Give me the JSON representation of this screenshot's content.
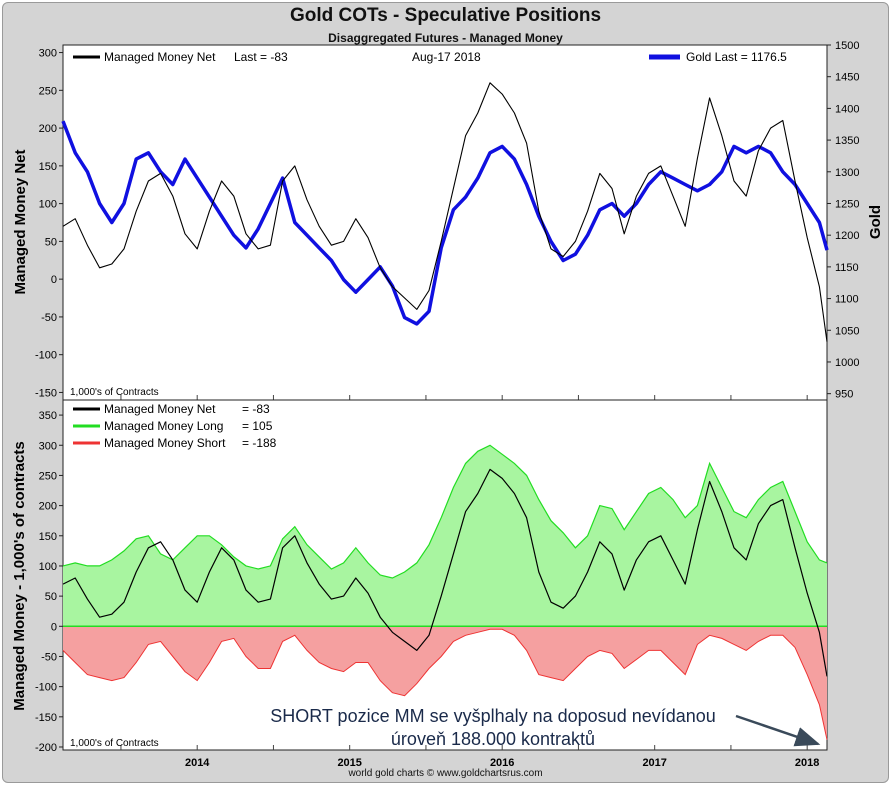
{
  "title": "Gold COTs - Speculative Positions",
  "subtitle": "Disaggregated Futures - Managed Money",
  "credit": "world gold charts © www.goldchartsrus.com",
  "colors": {
    "net": "#000000",
    "gold": "#1010e0",
    "long": "#22dd22",
    "long_fill": "#a8f5a0",
    "short": "#ee3333",
    "short_fill": "#f5a0a0",
    "arrow": "#3a4a5a",
    "annotation": "#1a2a4a"
  },
  "top_panel": {
    "legend_net": "Managed Money Net",
    "legend_net_last": "Last = -83",
    "date": "Aug-17  2018",
    "legend_gold": "Gold Last = 1176.5",
    "ylabel_left": "Managed Money Net",
    "ylabel_right": "Gold",
    "units_note": "1,000's of Contracts",
    "left_ticks": [
      "300",
      "250",
      "200",
      "150",
      "100",
      "50",
      "0",
      "-50",
      "-100",
      "-150"
    ],
    "right_ticks": [
      "1500",
      "1450",
      "1400",
      "1350",
      "1300",
      "1250",
      "1200",
      "1150",
      "1100",
      "1050",
      "1000",
      "950"
    ]
  },
  "bottom_panel": {
    "legend": [
      {
        "name": "Managed Money Net",
        "value": "=  -83"
      },
      {
        "name": "Managed Money Long",
        "value": "=  105"
      },
      {
        "name": "Managed Money Short",
        "value": "=  -188"
      }
    ],
    "ylabel": "Managed Money - 1,000's of contracts",
    "units_note": "1,000's of Contracts",
    "ticks": [
      "350",
      "300",
      "250",
      "200",
      "150",
      "100",
      "50",
      "0",
      "-50",
      "-100",
      "-150",
      "-200"
    ],
    "annotation_line1": "SHORT pozice MM se vyšplhaly na doposud nevídanou",
    "annotation_line2": "úroveň 188.000 kontraktů"
  },
  "x_axis": {
    "ticks": [
      "2014",
      "2015",
      "2016",
      "2017",
      "2018"
    ]
  },
  "chart_data": [
    {
      "type": "line",
      "x": [
        2013.62,
        2013.7,
        2013.78,
        2013.86,
        2013.94,
        2014.02,
        2014.1,
        2014.18,
        2014.26,
        2014.34,
        2014.42,
        2014.5,
        2014.58,
        2014.66,
        2014.74,
        2014.82,
        2014.9,
        2014.98,
        2015.06,
        2015.14,
        2015.22,
        2015.3,
        2015.38,
        2015.46,
        2015.54,
        2015.62,
        2015.7,
        2015.78,
        2015.86,
        2015.94,
        2016.02,
        2016.1,
        2016.18,
        2016.26,
        2016.34,
        2016.42,
        2016.5,
        2016.58,
        2016.66,
        2016.74,
        2016.82,
        2016.9,
        2016.98,
        2017.06,
        2017.14,
        2017.22,
        2017.3,
        2017.38,
        2017.46,
        2017.54,
        2017.62,
        2017.7,
        2017.78,
        2017.86,
        2017.94,
        2018.02,
        2018.1,
        2018.18,
        2018.26,
        2018.34,
        2018.42,
        2018.5,
        2018.58,
        2018.63
      ],
      "x_unit": "year",
      "series": [
        {
          "name": "Managed Money Net",
          "axis": "left",
          "values": [
            70,
            80,
            45,
            15,
            20,
            40,
            90,
            130,
            140,
            110,
            60,
            40,
            90,
            130,
            110,
            60,
            40,
            45,
            130,
            150,
            105,
            70,
            45,
            50,
            80,
            55,
            15,
            -10,
            -25,
            -40,
            -15,
            50,
            120,
            190,
            220,
            260,
            245,
            220,
            180,
            90,
            40,
            30,
            50,
            90,
            140,
            120,
            60,
            110,
            140,
            150,
            110,
            70,
            160,
            240,
            190,
            130,
            110,
            170,
            200,
            210,
            130,
            55,
            -10,
            -83
          ]
        },
        {
          "name": "Gold",
          "axis": "right",
          "values": [
            1380,
            1330,
            1300,
            1250,
            1220,
            1250,
            1320,
            1330,
            1300,
            1280,
            1320,
            1290,
            1260,
            1230,
            1200,
            1180,
            1210,
            1250,
            1290,
            1220,
            1200,
            1180,
            1160,
            1130,
            1110,
            1130,
            1150,
            1120,
            1070,
            1060,
            1080,
            1180,
            1240,
            1260,
            1290,
            1330,
            1340,
            1320,
            1280,
            1230,
            1190,
            1160,
            1170,
            1200,
            1240,
            1250,
            1230,
            1250,
            1280,
            1300,
            1290,
            1280,
            1270,
            1280,
            1300,
            1340,
            1330,
            1340,
            1330,
            1300,
            1280,
            1250,
            1220,
            1176.5
          ]
        }
      ],
      "ylim_left": [
        -160,
        310
      ],
      "ylim_right": [
        940,
        1500
      ]
    },
    {
      "type": "area",
      "x_unit": "year",
      "series": [
        {
          "name": "Managed Money Long",
          "values": [
            100,
            105,
            100,
            100,
            110,
            125,
            145,
            150,
            120,
            110,
            130,
            150,
            150,
            135,
            115,
            100,
            95,
            100,
            145,
            165,
            135,
            115,
            95,
            105,
            130,
            105,
            85,
            80,
            90,
            105,
            135,
            180,
            230,
            270,
            290,
            300,
            285,
            270,
            250,
            210,
            175,
            155,
            130,
            150,
            200,
            195,
            160,
            190,
            220,
            230,
            210,
            180,
            200,
            270,
            230,
            190,
            180,
            210,
            230,
            240,
            190,
            140,
            110,
            105
          ]
        },
        {
          "name": "Managed Money Short",
          "values": [
            -40,
            -60,
            -80,
            -85,
            -90,
            -85,
            -60,
            -30,
            -25,
            -50,
            -75,
            -90,
            -60,
            -25,
            -20,
            -50,
            -70,
            -70,
            -25,
            -15,
            -40,
            -60,
            -70,
            -75,
            -60,
            -60,
            -90,
            -110,
            -115,
            -95,
            -70,
            -50,
            -25,
            -15,
            -10,
            -5,
            -5,
            -15,
            -40,
            -80,
            -85,
            -90,
            -70,
            -50,
            -40,
            -45,
            -70,
            -55,
            -40,
            -40,
            -60,
            -80,
            -30,
            -15,
            -20,
            -30,
            -40,
            -25,
            -15,
            -15,
            -35,
            -80,
            -130,
            -188
          ]
        },
        {
          "name": "Managed Money Net",
          "values": [
            70,
            80,
            45,
            15,
            20,
            40,
            90,
            130,
            140,
            110,
            60,
            40,
            90,
            130,
            110,
            60,
            40,
            45,
            130,
            150,
            105,
            70,
            45,
            50,
            80,
            55,
            15,
            -10,
            -25,
            -40,
            -15,
            50,
            120,
            190,
            220,
            260,
            245,
            220,
            180,
            90,
            40,
            30,
            50,
            90,
            140,
            120,
            60,
            110,
            140,
            150,
            110,
            70,
            160,
            240,
            190,
            130,
            110,
            170,
            200,
            210,
            130,
            55,
            -10,
            -83
          ]
        }
      ],
      "ylim": [
        -205,
        375
      ]
    }
  ]
}
